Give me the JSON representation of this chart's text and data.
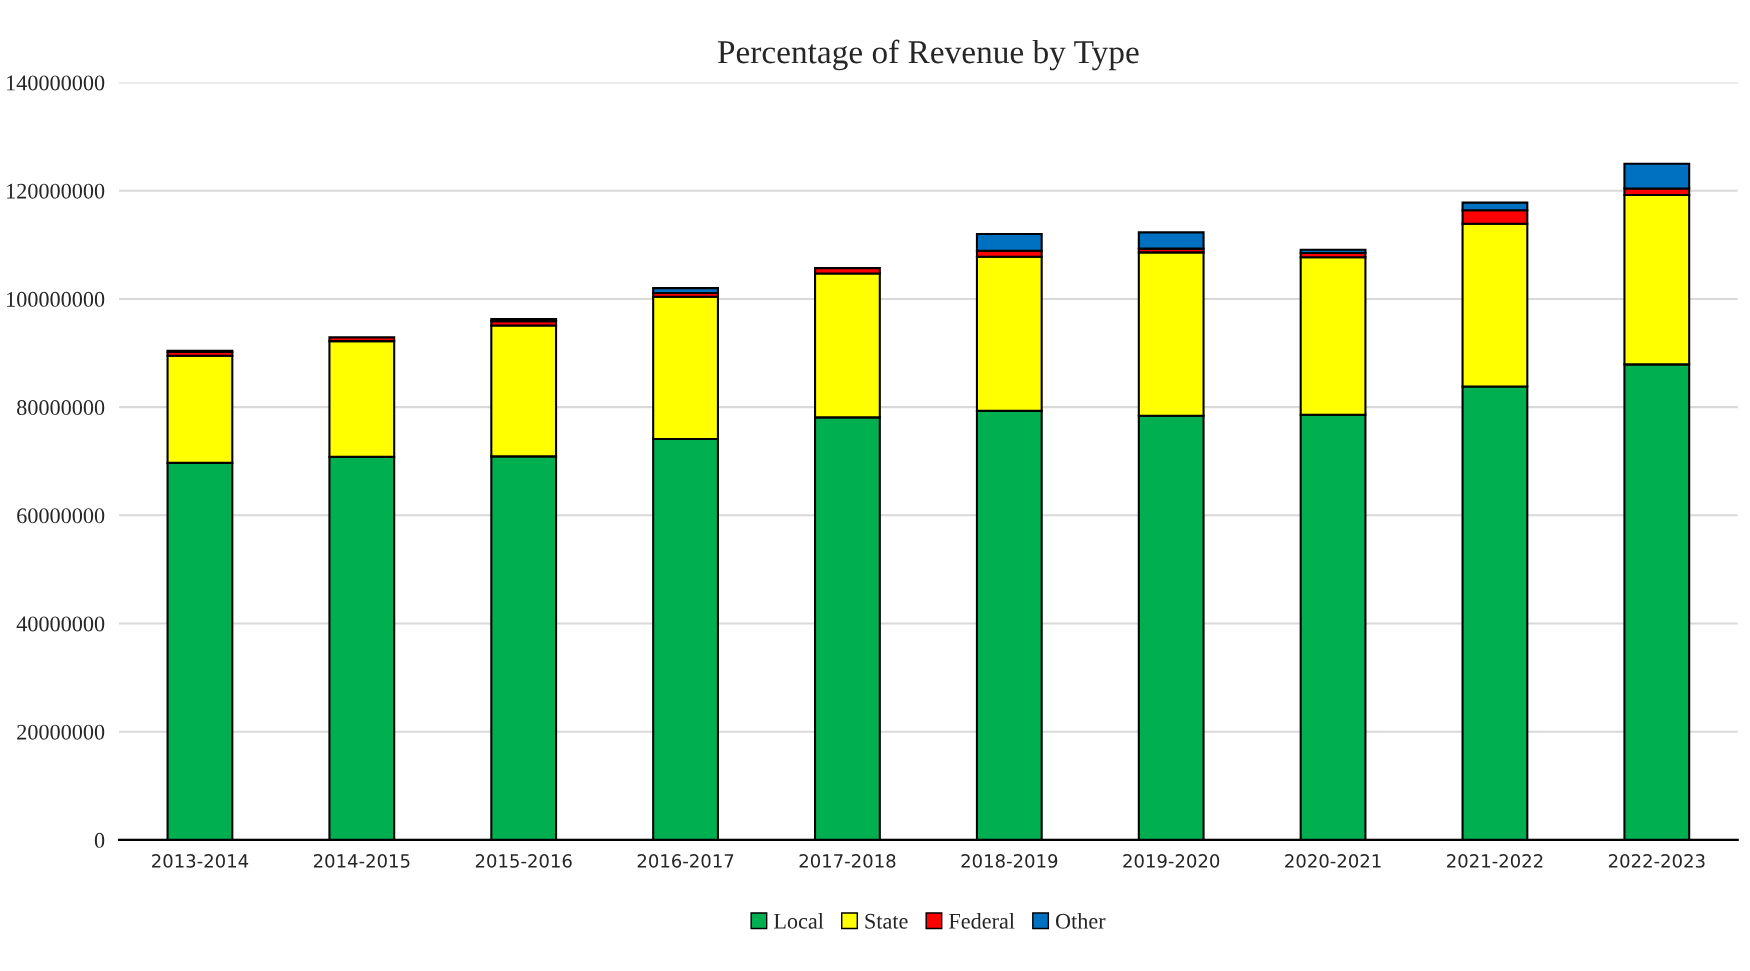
{
  "chart_data": {
    "type": "bar",
    "title": "Percentage of Revenue by Type",
    "stacked": true,
    "categories": [
      "2013-2014",
      "2014-2015",
      "2015-2016",
      "2016-2017",
      "2017-2018",
      "2018-2019",
      "2019-2020",
      "2020-2021",
      "2021-2022",
      "2022-2023"
    ],
    "series": [
      {
        "name": "Local",
        "color": "#00b050",
        "values": [
          69700000,
          70800000,
          70900000,
          74100000,
          78100000,
          79300000,
          78400000,
          78600000,
          83800000,
          87900000
        ]
      },
      {
        "name": "State",
        "color": "#ffff00",
        "values": [
          19800000,
          21400000,
          24200000,
          26300000,
          26600000,
          28500000,
          30200000,
          29100000,
          30100000,
          31300000
        ]
      },
      {
        "name": "Federal",
        "color": "#ff0000",
        "values": [
          700000,
          700000,
          800000,
          700000,
          1000000,
          1100000,
          700000,
          800000,
          2500000,
          1200000
        ]
      },
      {
        "name": "Other",
        "color": "#0070c0",
        "values": [
          200000,
          null,
          400000,
          900000,
          null,
          3100000,
          3000000,
          600000,
          1400000,
          4600000
        ]
      }
    ],
    "ylim": [
      0,
      140000000
    ],
    "yticks": [
      0,
      20000000,
      40000000,
      60000000,
      80000000,
      100000000,
      120000000,
      140000000
    ],
    "grid": "y",
    "legend": "bottom"
  }
}
